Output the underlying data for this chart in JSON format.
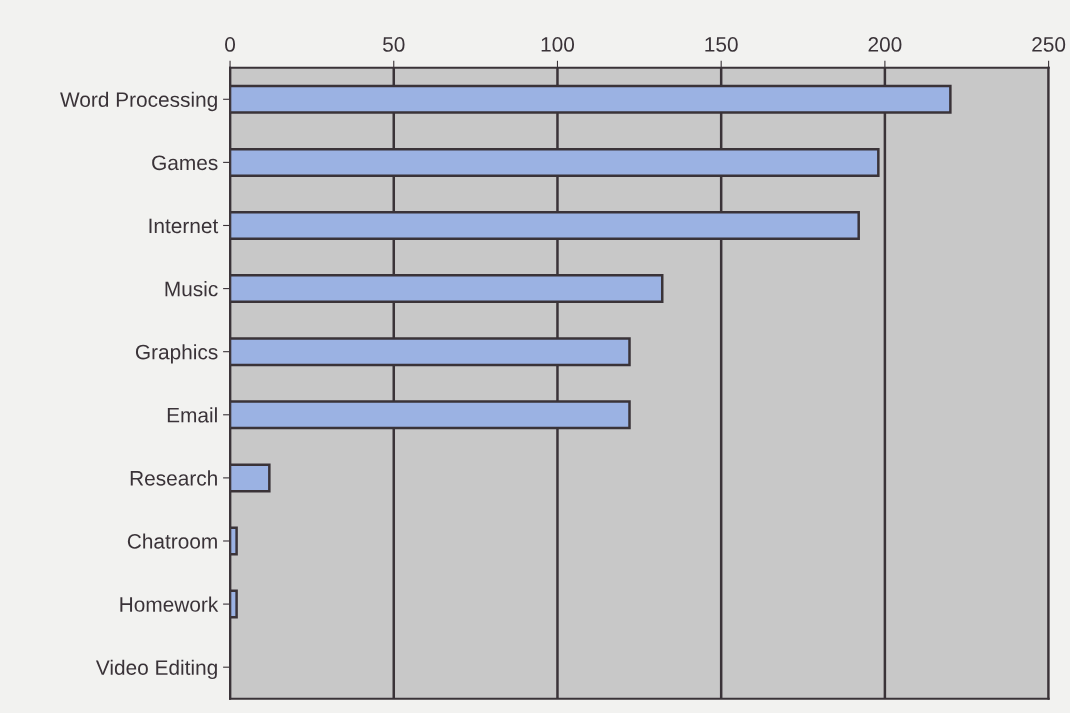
{
  "chart_data": {
    "type": "bar",
    "orientation": "horizontal",
    "categories": [
      "Word Processing",
      "Games",
      "Internet",
      "Music",
      "Graphics",
      "Email",
      "Research",
      "Chatroom",
      "Homework",
      "Video Editing"
    ],
    "values": [
      220,
      198,
      192,
      132,
      122,
      122,
      12,
      2,
      2,
      0
    ],
    "color": "#9bb2e3",
    "xlim": [
      0,
      250
    ],
    "xticks": [
      0,
      50,
      100,
      150,
      200,
      250
    ],
    "grid": "x"
  }
}
